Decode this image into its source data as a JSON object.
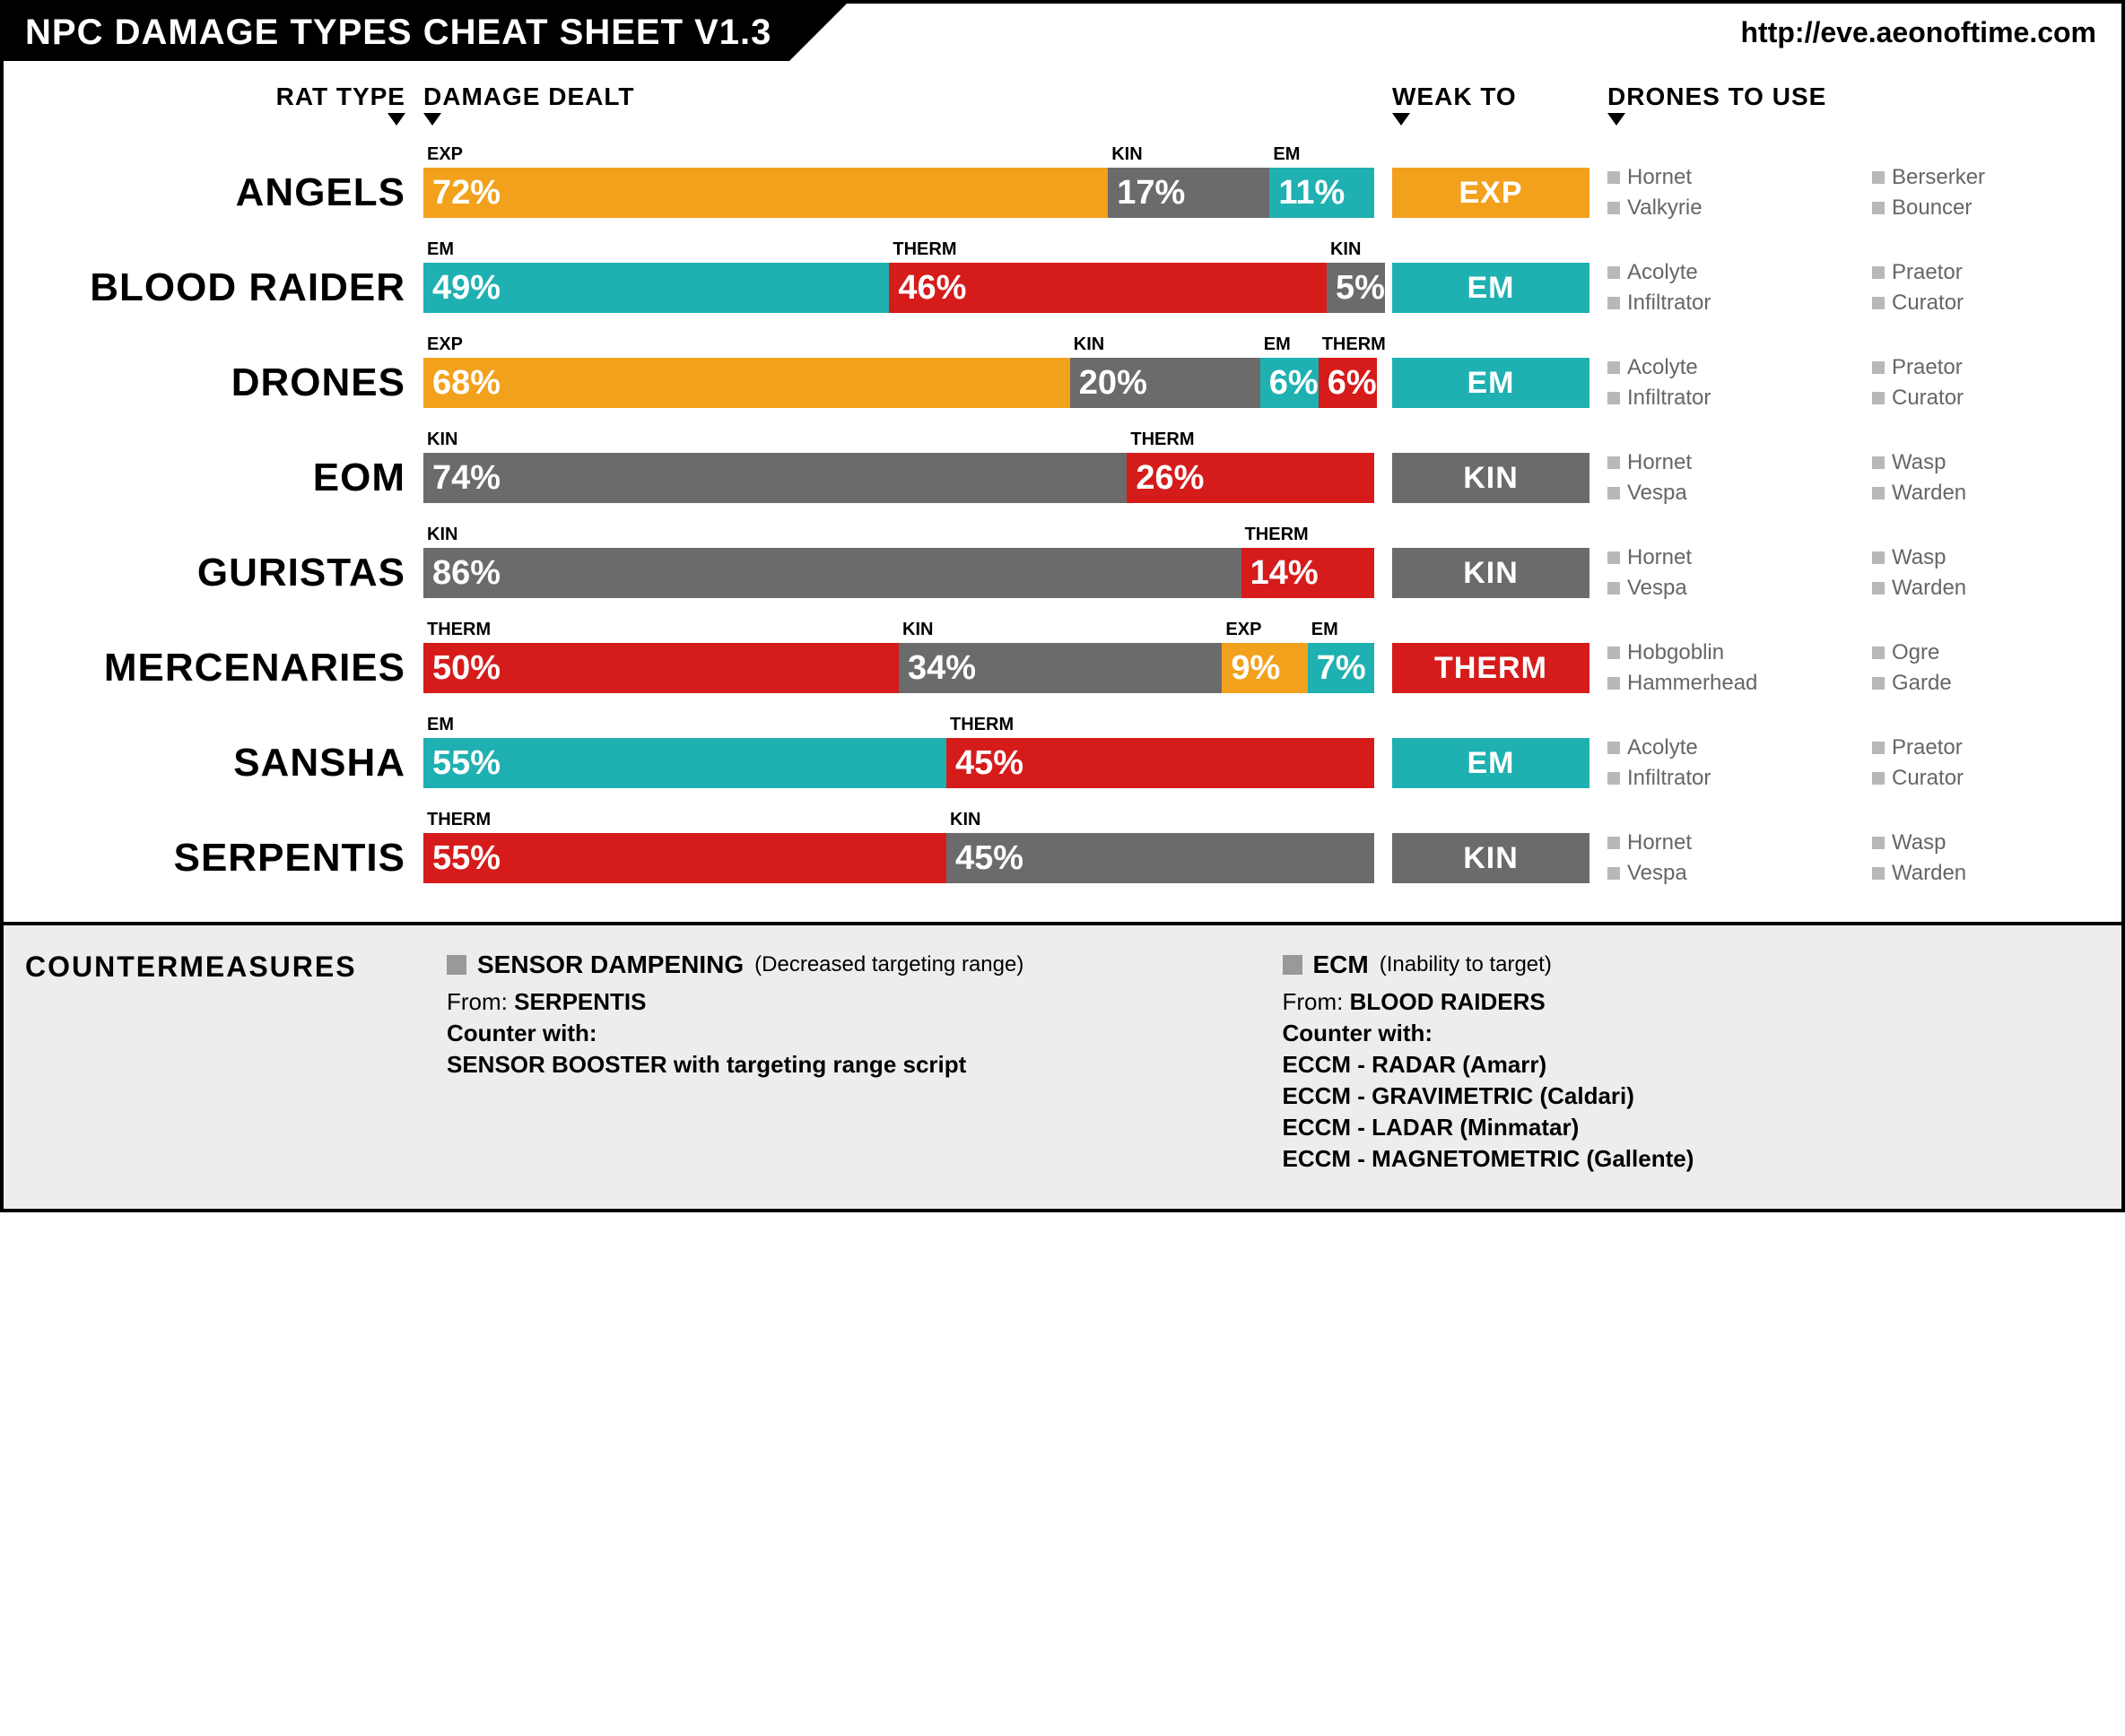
{
  "colors": {
    "exp": "#f2a11d",
    "kin": "#6b6b6b",
    "em": "#1fb0b1",
    "therm": "#d61b1b",
    "text_muted": "#666666",
    "cm_bg": "#ededed"
  },
  "header": {
    "title": "NPC DAMAGE TYPES CHEAT SHEET V1.3",
    "url": "http://eve.aeonoftime.com"
  },
  "columns": {
    "rat": "RAT TYPE",
    "damage": "DAMAGE DEALT",
    "weak": "WEAK TO",
    "drones": "DRONES TO USE"
  },
  "rows": [
    {
      "name": "ANGELS",
      "segments": [
        {
          "label": "EXP",
          "pct": 72,
          "color": "#f2a11d"
        },
        {
          "label": "KIN",
          "pct": 17,
          "color": "#6b6b6b"
        },
        {
          "label": "EM",
          "pct": 11,
          "color": "#1fb0b1"
        }
      ],
      "weak": {
        "label": "EXP",
        "color": "#f2a11d"
      },
      "drones": [
        "Hornet",
        "Berserker",
        "Valkyrie",
        "Bouncer"
      ]
    },
    {
      "name": "BLOOD RAIDER",
      "segments": [
        {
          "label": "EM",
          "pct": 49,
          "color": "#1fb0b1"
        },
        {
          "label": "THERM",
          "pct": 46,
          "color": "#d61b1b"
        },
        {
          "label": "KIN",
          "pct": 5,
          "color": "#6b6b6b"
        }
      ],
      "weak": {
        "label": "EM",
        "color": "#1fb0b1"
      },
      "drones": [
        "Acolyte",
        "Praetor",
        "Infiltrator",
        "Curator"
      ]
    },
    {
      "name": "DRONES",
      "segments": [
        {
          "label": "EXP",
          "pct": 68,
          "color": "#f2a11d"
        },
        {
          "label": "KIN",
          "pct": 20,
          "color": "#6b6b6b"
        },
        {
          "label": "EM",
          "pct": 6,
          "color": "#1fb0b1"
        },
        {
          "label": "THERM",
          "pct": 6,
          "color": "#d61b1b"
        }
      ],
      "weak": {
        "label": "EM",
        "color": "#1fb0b1"
      },
      "drones": [
        "Acolyte",
        "Praetor",
        "Infiltrator",
        "Curator"
      ]
    },
    {
      "name": "EOM",
      "segments": [
        {
          "label": "KIN",
          "pct": 74,
          "color": "#6b6b6b"
        },
        {
          "label": "THERM",
          "pct": 26,
          "color": "#d61b1b"
        }
      ],
      "weak": {
        "label": "KIN",
        "color": "#6b6b6b"
      },
      "drones": [
        "Hornet",
        "Wasp",
        "Vespa",
        "Warden"
      ]
    },
    {
      "name": "GURISTAS",
      "segments": [
        {
          "label": "KIN",
          "pct": 86,
          "color": "#6b6b6b"
        },
        {
          "label": "THERM",
          "pct": 14,
          "color": "#d61b1b"
        }
      ],
      "weak": {
        "label": "KIN",
        "color": "#6b6b6b"
      },
      "drones": [
        "Hornet",
        "Wasp",
        "Vespa",
        "Warden"
      ]
    },
    {
      "name": "MERCENARIES",
      "segments": [
        {
          "label": "THERM",
          "pct": 50,
          "color": "#d61b1b"
        },
        {
          "label": "KIN",
          "pct": 34,
          "color": "#6b6b6b"
        },
        {
          "label": "EXP",
          "pct": 9,
          "color": "#f2a11d"
        },
        {
          "label": "EM",
          "pct": 7,
          "color": "#1fb0b1"
        }
      ],
      "weak": {
        "label": "THERM",
        "color": "#d61b1b"
      },
      "drones": [
        "Hobgoblin",
        "Ogre",
        "Hammerhead",
        "Garde"
      ]
    },
    {
      "name": "SANSHA",
      "segments": [
        {
          "label": "EM",
          "pct": 55,
          "color": "#1fb0b1"
        },
        {
          "label": "THERM",
          "pct": 45,
          "color": "#d61b1b"
        }
      ],
      "weak": {
        "label": "EM",
        "color": "#1fb0b1"
      },
      "drones": [
        "Acolyte",
        "Praetor",
        "Infiltrator",
        "Curator"
      ]
    },
    {
      "name": "SERPENTIS",
      "segments": [
        {
          "label": "THERM",
          "pct": 55,
          "color": "#d61b1b"
        },
        {
          "label": "KIN",
          "pct": 45,
          "color": "#6b6b6b"
        }
      ],
      "weak": {
        "label": "KIN",
        "color": "#6b6b6b"
      },
      "drones": [
        "Hornet",
        "Wasp",
        "Vespa",
        "Warden"
      ]
    }
  ],
  "countermeasures": {
    "title": "COUNTERMEASURES",
    "left": {
      "head": "SENSOR DAMPENING",
      "sub": "(Decreased targeting range)",
      "from_label": "From:",
      "from_value": "SERPENTIS",
      "counter_label": "Counter with:",
      "counter_lines": [
        "SENSOR BOOSTER with targeting range script"
      ]
    },
    "right": {
      "head": "ECM",
      "sub": "(Inability to target)",
      "from_label": "From:",
      "from_value": "BLOOD RAIDERS",
      "counter_label": "Counter with:",
      "counter_lines": [
        "ECCM - RADAR (Amarr)",
        "ECCM - GRAVIMETRIC (Caldari)",
        "ECCM - LADAR (Minmatar)",
        "ECCM - MAGNETOMETRIC (Gallente)"
      ]
    }
  }
}
